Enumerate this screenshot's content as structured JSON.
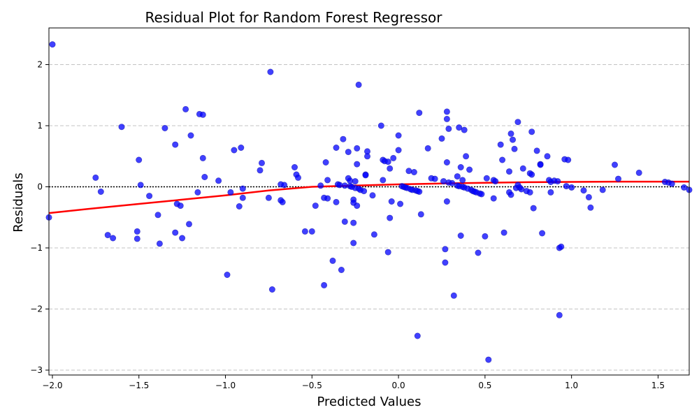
{
  "chart_data": {
    "type": "scatter",
    "title": "Residual Plot for Random Forest Regressor",
    "xlabel": "Predicted Values",
    "ylabel": "Residuals",
    "xlim": [
      -2.02,
      1.68
    ],
    "ylim": [
      -3.08,
      2.6
    ],
    "xticks": [
      -2.0,
      -1.5,
      -1.0,
      -0.5,
      0.0,
      0.5,
      1.0,
      1.5
    ],
    "yticks": [
      -3,
      -2,
      -1,
      0,
      1,
      2
    ],
    "grid": "y",
    "reference_line_y": 0,
    "point_color": "#0000ff",
    "trend_color": "#ff0000",
    "points": [
      [
        -2.0,
        2.33
      ],
      [
        -2.02,
        -0.5
      ],
      [
        -1.75,
        0.15
      ],
      [
        -1.72,
        -0.08
      ],
      [
        -1.68,
        -0.79
      ],
      [
        -1.65,
        -0.84
      ],
      [
        -1.6,
        0.98
      ],
      [
        -1.51,
        -0.73
      ],
      [
        -1.51,
        -0.85
      ],
      [
        -1.5,
        0.44
      ],
      [
        -1.49,
        0.03
      ],
      [
        -1.44,
        -0.15
      ],
      [
        -1.39,
        -0.46
      ],
      [
        -1.38,
        -0.93
      ],
      [
        -1.35,
        0.96
      ],
      [
        -1.29,
        0.69
      ],
      [
        -1.29,
        -0.75
      ],
      [
        -1.28,
        -0.28
      ],
      [
        -1.26,
        -0.31
      ],
      [
        -1.25,
        -0.84
      ],
      [
        -1.23,
        1.27
      ],
      [
        -1.21,
        -0.61
      ],
      [
        -1.2,
        0.84
      ],
      [
        -1.16,
        -0.09
      ],
      [
        -1.15,
        1.19
      ],
      [
        -1.13,
        1.18
      ],
      [
        -1.13,
        0.47
      ],
      [
        -1.12,
        0.16
      ],
      [
        -1.04,
        0.1
      ],
      [
        -0.99,
        -1.44
      ],
      [
        -0.97,
        -0.09
      ],
      [
        -0.95,
        0.6
      ],
      [
        -0.92,
        -0.32
      ],
      [
        -0.91,
        0.64
      ],
      [
        -0.9,
        -0.03
      ],
      [
        -0.9,
        -0.18
      ],
      [
        -0.8,
        0.27
      ],
      [
        -0.79,
        0.39
      ],
      [
        -0.75,
        -0.18
      ],
      [
        -0.74,
        1.88
      ],
      [
        -0.73,
        -1.68
      ],
      [
        -0.68,
        -0.22
      ],
      [
        -0.68,
        0.04
      ],
      [
        -0.67,
        -0.25
      ],
      [
        -0.66,
        0.03
      ],
      [
        -0.6,
        0.32
      ],
      [
        -0.59,
        0.2
      ],
      [
        -0.58,
        0.15
      ],
      [
        -0.54,
        -0.73
      ],
      [
        -0.5,
        -0.73
      ],
      [
        -0.48,
        -0.31
      ],
      [
        -0.45,
        0.02
      ],
      [
        -0.43,
        -1.61
      ],
      [
        -0.43,
        -0.18
      ],
      [
        -0.42,
        0.4
      ],
      [
        -0.41,
        0.11
      ],
      [
        -0.41,
        -0.19
      ],
      [
        -0.38,
        -1.21
      ],
      [
        -0.36,
        0.64
      ],
      [
        -0.36,
        -0.25
      ],
      [
        -0.35,
        0.04
      ],
      [
        -0.34,
        0.03
      ],
      [
        -0.33,
        -1.36
      ],
      [
        -0.32,
        0.78
      ],
      [
        -0.31,
        -0.57
      ],
      [
        -0.31,
        0.02
      ],
      [
        -0.29,
        0.14
      ],
      [
        -0.29,
        0.57
      ],
      [
        -0.28,
        0.01
      ],
      [
        -0.28,
        0.1
      ],
      [
        -0.27,
        0.0
      ],
      [
        -0.26,
        -0.92
      ],
      [
        -0.26,
        -0.59
      ],
      [
        -0.26,
        -0.21
      ],
      [
        -0.26,
        -0.26
      ],
      [
        -0.25,
        0.09
      ],
      [
        -0.25,
        -0.02
      ],
      [
        -0.24,
        0.63
      ],
      [
        -0.24,
        0.37
      ],
      [
        -0.24,
        -0.31
      ],
      [
        -0.23,
        -0.03
      ],
      [
        -0.23,
        1.67
      ],
      [
        -0.22,
        -0.05
      ],
      [
        -0.2,
        -0.07
      ],
      [
        -0.19,
        0.2
      ],
      [
        -0.19,
        0.19
      ],
      [
        -0.18,
        0.5
      ],
      [
        -0.18,
        0.58
      ],
      [
        -0.15,
        -0.14
      ],
      [
        -0.14,
        -0.78
      ],
      [
        -0.1,
        1.0
      ],
      [
        -0.09,
        0.11
      ],
      [
        -0.09,
        0.44
      ],
      [
        -0.08,
        0.42
      ],
      [
        -0.06,
        0.41
      ],
      [
        -0.06,
        -1.07
      ],
      [
        -0.05,
        -0.51
      ],
      [
        -0.05,
        0.3
      ],
      [
        -0.04,
        -0.24
      ],
      [
        -0.03,
        0.47
      ],
      [
        0.0,
        0.84
      ],
      [
        0.0,
        0.6
      ],
      [
        0.01,
        -0.28
      ],
      [
        0.02,
        0.01
      ],
      [
        0.03,
        0.0
      ],
      [
        0.04,
        -0.01
      ],
      [
        0.05,
        -0.02
      ],
      [
        0.06,
        0.26
      ],
      [
        0.07,
        -0.04
      ],
      [
        0.08,
        -0.05
      ],
      [
        0.09,
        0.24
      ],
      [
        0.1,
        -0.06
      ],
      [
        0.11,
        -0.07
      ],
      [
        0.11,
        -2.44
      ],
      [
        0.12,
        1.21
      ],
      [
        0.12,
        -0.08
      ],
      [
        0.13,
        -0.45
      ],
      [
        0.17,
        0.63
      ],
      [
        0.19,
        0.14
      ],
      [
        0.21,
        0.13
      ],
      [
        0.25,
        0.79
      ],
      [
        0.26,
        0.09
      ],
      [
        0.27,
        -1.24
      ],
      [
        0.27,
        -1.02
      ],
      [
        0.28,
        0.4
      ],
      [
        0.28,
        -0.24
      ],
      [
        0.28,
        1.23
      ],
      [
        0.28,
        1.11
      ],
      [
        0.29,
        0.95
      ],
      [
        0.29,
        0.07
      ],
      [
        0.31,
        0.06
      ],
      [
        0.32,
        -1.78
      ],
      [
        0.34,
        0.17
      ],
      [
        0.34,
        0.02
      ],
      [
        0.35,
        0.01
      ],
      [
        0.35,
        0.97
      ],
      [
        0.36,
        0.32
      ],
      [
        0.36,
        -0.8
      ],
      [
        0.37,
        0.11
      ],
      [
        0.37,
        0.0
      ],
      [
        0.38,
        -0.01
      ],
      [
        0.38,
        0.93
      ],
      [
        0.39,
        0.5
      ],
      [
        0.4,
        -0.03
      ],
      [
        0.41,
        0.28
      ],
      [
        0.42,
        -0.05
      ],
      [
        0.43,
        -0.07
      ],
      [
        0.44,
        -0.08
      ],
      [
        0.45,
        -0.09
      ],
      [
        0.46,
        -1.08
      ],
      [
        0.47,
        -0.11
      ],
      [
        0.48,
        -0.12
      ],
      [
        0.5,
        -0.81
      ],
      [
        0.51,
        0.14
      ],
      [
        0.52,
        -2.83
      ],
      [
        0.55,
        0.11
      ],
      [
        0.55,
        -0.19
      ],
      [
        0.56,
        0.09
      ],
      [
        0.59,
        0.69
      ],
      [
        0.6,
        0.44
      ],
      [
        0.61,
        -0.75
      ],
      [
        0.64,
        -0.09
      ],
      [
        0.64,
        0.25
      ],
      [
        0.65,
        -0.13
      ],
      [
        0.65,
        0.87
      ],
      [
        0.66,
        0.77
      ],
      [
        0.67,
        0.62
      ],
      [
        0.68,
        -0.02
      ],
      [
        0.69,
        1.06
      ],
      [
        0.69,
        0.03
      ],
      [
        0.7,
        -0.01
      ],
      [
        0.71,
        -0.04
      ],
      [
        0.72,
        0.3
      ],
      [
        0.74,
        -0.07
      ],
      [
        0.76,
        -0.09
      ],
      [
        0.76,
        0.22
      ],
      [
        0.77,
        0.2
      ],
      [
        0.77,
        0.9
      ],
      [
        0.78,
        -0.35
      ],
      [
        0.8,
        0.59
      ],
      [
        0.82,
        0.37
      ],
      [
        0.82,
        0.36
      ],
      [
        0.83,
        -0.76
      ],
      [
        0.86,
        0.5
      ],
      [
        0.87,
        0.11
      ],
      [
        0.88,
        -0.09
      ],
      [
        0.88,
        0.08
      ],
      [
        0.9,
        0.1
      ],
      [
        0.92,
        0.09
      ],
      [
        0.93,
        -2.1
      ],
      [
        0.93,
        -1.0
      ],
      [
        0.94,
        -0.98
      ],
      [
        0.96,
        0.45
      ],
      [
        0.97,
        0.01
      ],
      [
        0.98,
        0.44
      ],
      [
        1.0,
        -0.01
      ],
      [
        1.07,
        -0.06
      ],
      [
        1.1,
        -0.17
      ],
      [
        1.11,
        -0.34
      ],
      [
        1.18,
        -0.05
      ],
      [
        1.25,
        0.36
      ],
      [
        1.27,
        0.13
      ],
      [
        1.39,
        0.23
      ],
      [
        1.54,
        0.08
      ],
      [
        1.56,
        0.07
      ],
      [
        1.58,
        0.05
      ],
      [
        1.65,
        -0.01
      ],
      [
        1.68,
        -0.05
      ]
    ],
    "trend_line": [
      [
        -2.02,
        -0.43
      ],
      [
        -1.75,
        -0.35
      ],
      [
        -1.5,
        -0.28
      ],
      [
        -1.25,
        -0.21
      ],
      [
        -1.0,
        -0.14
      ],
      [
        -0.75,
        -0.06
      ],
      [
        -0.5,
        0.0
      ],
      [
        -0.25,
        0.02
      ],
      [
        0.0,
        0.04
      ],
      [
        0.25,
        0.055
      ],
      [
        0.5,
        0.065
      ],
      [
        0.75,
        0.075
      ],
      [
        1.0,
        0.08
      ],
      [
        1.25,
        0.085
      ],
      [
        1.5,
        0.085
      ],
      [
        1.68,
        0.085
      ]
    ]
  }
}
